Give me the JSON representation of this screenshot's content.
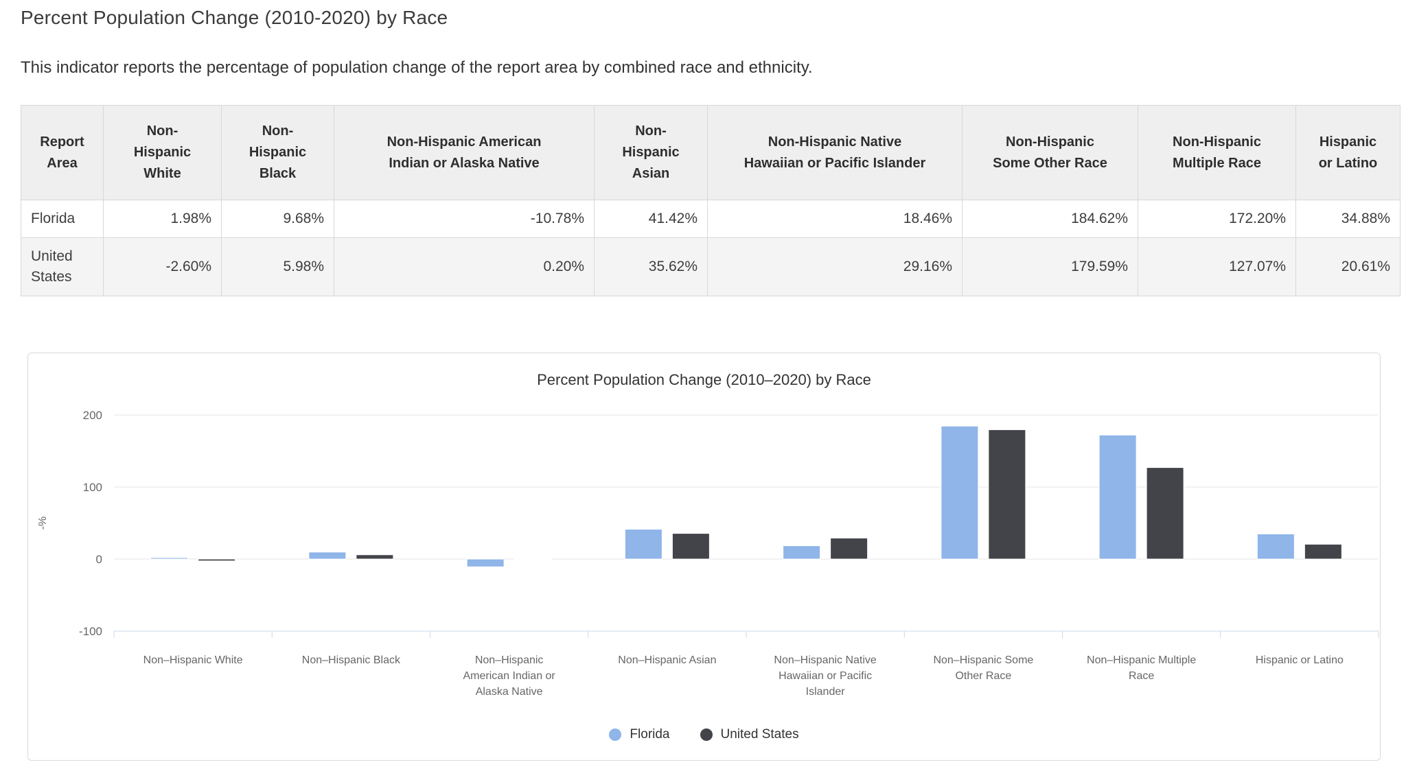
{
  "page": {
    "title": "Percent Population Change (2010-2020) by Race",
    "subtitle": "This indicator reports the percentage of population change of the report area by combined race and ethnicity."
  },
  "table": {
    "columns": [
      {
        "label": "Report Area",
        "lines": "Report\nArea"
      },
      {
        "label": "Non-Hispanic White",
        "lines": "Non-\nHispanic\nWhite"
      },
      {
        "label": "Non-Hispanic Black",
        "lines": "Non-\nHispanic\nBlack"
      },
      {
        "label": "Non-Hispanic American Indian or Alaska Native",
        "lines": "Non-Hispanic American\nIndian or Alaska Native"
      },
      {
        "label": "Non-Hispanic Asian",
        "lines": "Non-\nHispanic\nAsian"
      },
      {
        "label": "Non-Hispanic Native Hawaiian or Pacific Islander",
        "lines": "Non-Hispanic Native\nHawaiian or Pacific Islander"
      },
      {
        "label": "Non-Hispanic Some Other Race",
        "lines": "Non-Hispanic\nSome Other Race"
      },
      {
        "label": "Non-Hispanic Multiple Race",
        "lines": "Non-Hispanic\nMultiple Race"
      },
      {
        "label": "Hispanic or Latino",
        "lines": "Hispanic\nor Latino"
      }
    ],
    "rows": [
      {
        "area": "Florida",
        "values": [
          "1.98%",
          "9.68%",
          "-10.78%",
          "41.42%",
          "18.46%",
          "184.62%",
          "172.20%",
          "34.88%"
        ]
      },
      {
        "area": "United States",
        "values": [
          "-2.60%",
          "5.98%",
          "0.20%",
          "35.62%",
          "29.16%",
          "179.59%",
          "127.07%",
          "20.61%"
        ]
      }
    ]
  },
  "chart_data": {
    "type": "bar",
    "title": "Percent Population Change (2010–2020) by Race",
    "ylabel": "-%",
    "yticks": [
      200,
      100,
      0,
      -100
    ],
    "ylim": [
      -100,
      230
    ],
    "grid": true,
    "legend_position": "bottom",
    "categories": [
      "Non–Hispanic White",
      "Non–Hispanic Black",
      "Non–Hispanic American Indian or Alaska Native",
      "Non–Hispanic Asian",
      "Non–Hispanic Native Hawaiian or Pacific Islander",
      "Non–Hispanic Some Other Race",
      "Non–Hispanic Multiple Race",
      "Hispanic or Latino"
    ],
    "category_lines": [
      [
        "Non–Hispanic White"
      ],
      [
        "Non–Hispanic Black"
      ],
      [
        "Non–Hispanic",
        "American Indian or",
        "Alaska Native"
      ],
      [
        "Non–Hispanic Asian"
      ],
      [
        "Non–Hispanic Native",
        "Hawaiian or Pacific",
        "Islander"
      ],
      [
        "Non–Hispanic Some",
        "Other Race"
      ],
      [
        "Non–Hispanic Multiple",
        "Race"
      ],
      [
        "Hispanic or Latino"
      ]
    ],
    "series": [
      {
        "name": "Florida",
        "color": "#8FB5E9",
        "values": [
          1.98,
          9.68,
          -10.78,
          41.42,
          18.46,
          184.62,
          172.2,
          34.88
        ]
      },
      {
        "name": "United States",
        "color": "#434449",
        "values": [
          -2.6,
          5.98,
          0.2,
          35.62,
          29.16,
          179.59,
          127.07,
          20.61
        ]
      }
    ]
  },
  "colors": {
    "axis_line": "#ccd6eb",
    "gridline": "#e6e6e6",
    "tick_label": "#666666",
    "chart_title": "#333333"
  }
}
